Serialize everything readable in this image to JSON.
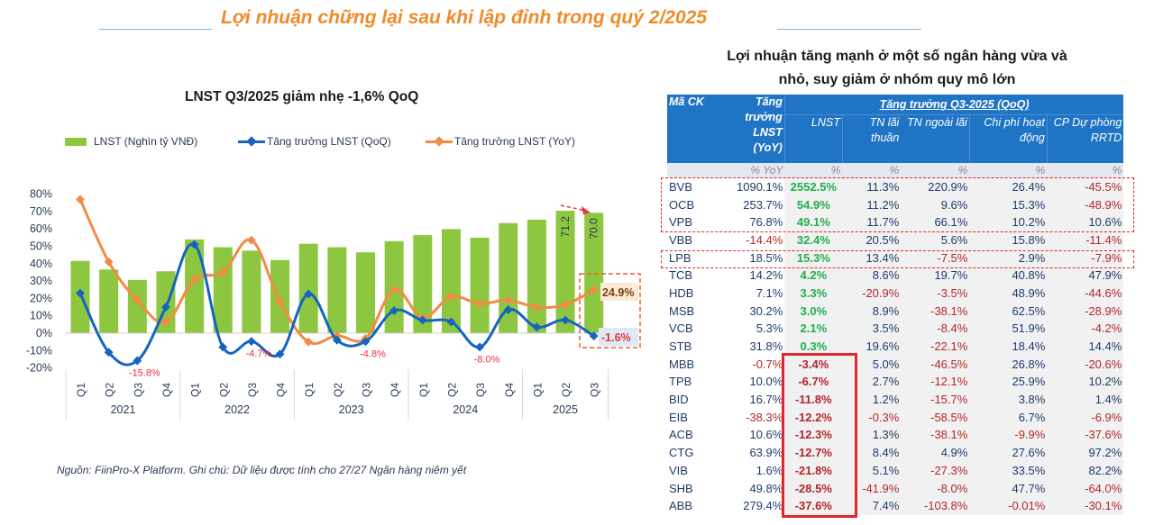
{
  "header": {
    "main_title": "Lợi nhuận chững lại sau khi lập đỉnh trong quý 2/2025"
  },
  "chart": {
    "title": "LNST Q3/2025 giảm nhẹ -1,6% QoQ",
    "legend": [
      {
        "label": "LNST (Nghìn tỷ VNĐ)",
        "color": "#8dc63f"
      },
      {
        "label": "Tăng trưởng LNST (QoQ)",
        "color": "#1565c0"
      },
      {
        "label": "Tăng trưởng LNST (YoY)",
        "color": "#f28b45"
      }
    ],
    "source_note": "Nguồn: FiinPro-X Platform. Ghi chú: Dữ liệu được tính cho 27/27 Ngân hàng niêm yết"
  },
  "chart_data": {
    "type": "bar",
    "title": "LNST Q3/2025 giảm nhẹ -1,6% QoQ",
    "xlabel": "",
    "ylabel": "",
    "ylim": [
      -20,
      80
    ],
    "y_ticks": [
      "80%",
      "70%",
      "60%",
      "50%",
      "40%",
      "30%",
      "20%",
      "10%",
      "0%",
      "-10%",
      "-20%"
    ],
    "years": [
      "2021",
      "2022",
      "2023",
      "2024",
      "2025"
    ],
    "categories": [
      "Q1",
      "Q2",
      "Q3",
      "Q4",
      "Q1",
      "Q2",
      "Q3",
      "Q4",
      "Q1",
      "Q2",
      "Q3",
      "Q4",
      "Q1",
      "Q2",
      "Q3",
      "Q4",
      "Q1",
      "Q2",
      "Q3"
    ],
    "category_years": [
      "2021",
      "2021",
      "2021",
      "2021",
      "2022",
      "2022",
      "2022",
      "2022",
      "2023",
      "2023",
      "2023",
      "2023",
      "2024",
      "2024",
      "2024",
      "2024",
      "2025",
      "2025",
      "2025"
    ],
    "series": [
      {
        "name": "LNST (Nghìn tỷ VNĐ)",
        "type": "bar",
        "color": "#8dc63f",
        "values": [
          42,
          37,
          31,
          36,
          54.5,
          50,
          48,
          42.5,
          52,
          50,
          47,
          53.5,
          57,
          60.5,
          55.5,
          64,
          66,
          71.2,
          70.0
        ]
      },
      {
        "name": "Tăng trưởng LNST (QoQ)",
        "type": "line",
        "color": "#1565c0",
        "values": [
          23,
          -11,
          -15.8,
          15,
          51,
          -8,
          -4.7,
          -12,
          22.5,
          -4,
          -4.8,
          13,
          7.5,
          6.5,
          -8.0,
          13.5,
          3.5,
          7.5,
          -1.6
        ]
      },
      {
        "name": "Tăng trưởng LNST (YoY)",
        "type": "line",
        "color": "#f28b45",
        "values": [
          77,
          41,
          19,
          6.5,
          31,
          35,
          53.5,
          18,
          -5,
          -1.5,
          -3,
          25,
          9,
          21,
          17,
          19,
          15,
          16.5,
          24.9
        ]
      }
    ],
    "annotations": [
      {
        "text": "-15.8%",
        "index": 2
      },
      {
        "text": "-4.7%",
        "index": 6
      },
      {
        "text": "-4.8%",
        "index": 10
      },
      {
        "text": "-8.0%",
        "index": 14
      },
      {
        "text": "71.2",
        "index": 17
      },
      {
        "text": "70.0",
        "index": 18
      },
      {
        "text": "24.9%",
        "index": 18,
        "series": "YoY"
      },
      {
        "text": "-1.6%",
        "index": 18,
        "series": "QoQ"
      }
    ],
    "legend_position": "top",
    "grid": false
  },
  "table": {
    "title_line1": "Lợi nhuận tăng mạnh ở một số ngân hàng vừa và",
    "title_line2": "nhỏ, suy giảm ở nhóm quy mô lớn",
    "headers": {
      "code": "Mã CK",
      "yoy": "Tăng trưởng LNST (YoY)",
      "group": "Tăng trưởng Q3-2025 (QoQ)",
      "lnst": "LNST",
      "nii": "TN lãi thuần",
      "non_interest": "TN ngoài lãi",
      "opex": "Chi phí hoạt động",
      "provision": "CP Dự phòng RRTD"
    },
    "units": [
      "",
      "% YoY",
      "%",
      "%",
      "%",
      "%",
      "%"
    ],
    "rows": [
      [
        "BVB",
        "1090.1%",
        "2552.5%",
        "11.3%",
        "220.9%",
        "26.4%",
        "-45.5%"
      ],
      [
        "OCB",
        "253.7%",
        "54.9%",
        "11.2%",
        "9.6%",
        "15.3%",
        "-48.9%"
      ],
      [
        "VPB",
        "76.8%",
        "49.1%",
        "11.7%",
        "66.1%",
        "10.2%",
        "10.6%"
      ],
      [
        "VBB",
        "-14.4%",
        "32.4%",
        "20.5%",
        "5.6%",
        "15.8%",
        "-11.4%"
      ],
      [
        "LPB",
        "18.5%",
        "15.3%",
        "13.4%",
        "-7.5%",
        "2.9%",
        "-7.9%"
      ],
      [
        "TCB",
        "14.2%",
        "4.2%",
        "8.6%",
        "19.7%",
        "40.8%",
        "47.9%"
      ],
      [
        "HDB",
        "7.1%",
        "3.3%",
        "-20.9%",
        "-3.5%",
        "48.9%",
        "-44.6%"
      ],
      [
        "MSB",
        "30.2%",
        "3.0%",
        "8.9%",
        "-38.1%",
        "62.5%",
        "-28.9%"
      ],
      [
        "VCB",
        "5.3%",
        "2.1%",
        "3.5%",
        "-8.4%",
        "51.9%",
        "-4.2%"
      ],
      [
        "STB",
        "31.8%",
        "0.3%",
        "19.6%",
        "-22.1%",
        "18.4%",
        "14.4%"
      ],
      [
        "MBB",
        "-0.7%",
        "-3.4%",
        "5.0%",
        "-46.5%",
        "26.8%",
        "-20.6%"
      ],
      [
        "TPB",
        "10.0%",
        "-6.7%",
        "2.7%",
        "-12.1%",
        "25.9%",
        "10.2%"
      ],
      [
        "BID",
        "16.7%",
        "-11.8%",
        "1.2%",
        "-15.7%",
        "3.8%",
        "1.4%"
      ],
      [
        "EIB",
        "-38.3%",
        "-12.2%",
        "-0.3%",
        "-58.5%",
        "6.7%",
        "-6.9%"
      ],
      [
        "ACB",
        "10.6%",
        "-12.3%",
        "1.3%",
        "-38.1%",
        "-9.9%",
        "-37.6%"
      ],
      [
        "CTG",
        "63.9%",
        "-12.7%",
        "8.4%",
        "4.9%",
        "27.6%",
        "97.2%"
      ],
      [
        "VIB",
        "1.6%",
        "-21.8%",
        "5.1%",
        "-27.3%",
        "33.5%",
        "82.2%"
      ],
      [
        "SHB",
        "49.8%",
        "-28.5%",
        "-41.9%",
        "-8.0%",
        "47.7%",
        "-64.0%"
      ],
      [
        "ABB",
        "279.4%",
        "-37.6%",
        "7.4%",
        "-103.8%",
        "-0.01%",
        "-30.1%"
      ]
    ]
  }
}
